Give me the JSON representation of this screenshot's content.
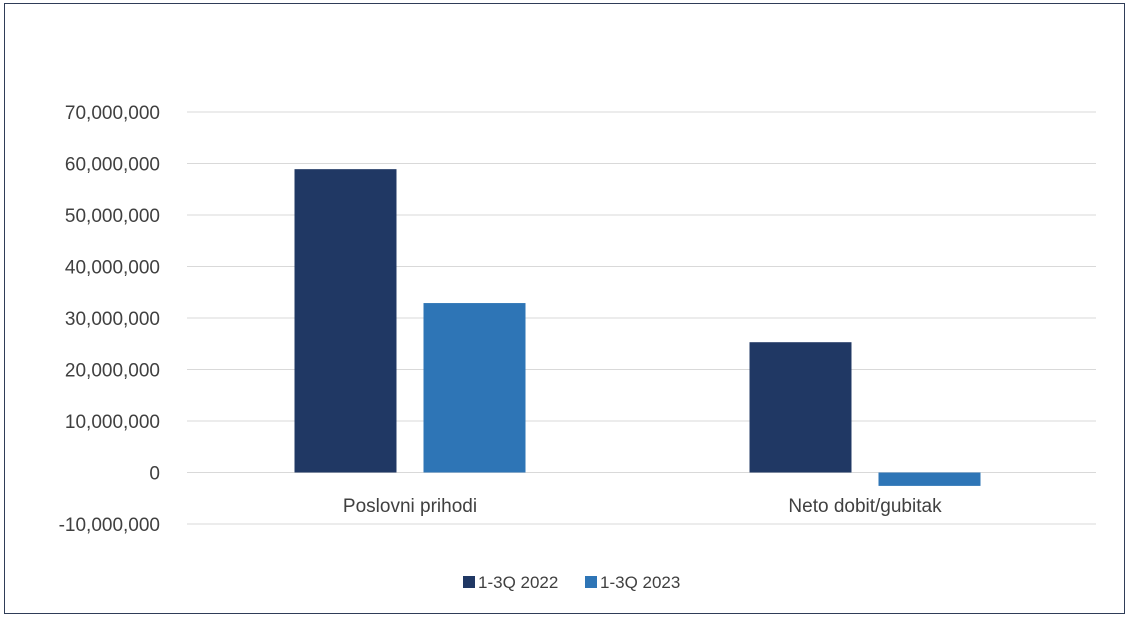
{
  "chart_data": {
    "type": "bar",
    "categories": [
      "Poslovni prihodi",
      "Neto dobit/gubitak"
    ],
    "series": [
      {
        "name": "1-3Q 2022",
        "color": "#203864",
        "values": [
          58900000,
          25300000
        ]
      },
      {
        "name": "1-3Q 2023",
        "color": "#2e75b6",
        "values": [
          32900000,
          -2600000
        ]
      }
    ],
    "ylim": [
      -10000000,
      70000000
    ],
    "yticks": [
      -10000000,
      0,
      10000000,
      20000000,
      30000000,
      40000000,
      50000000,
      60000000,
      70000000
    ],
    "ytick_labels": [
      "-10,000,000",
      "0",
      "10,000,000",
      "20,000,000",
      "30,000,000",
      "40,000,000",
      "50,000,000",
      "60,000,000",
      "70,000,000"
    ],
    "grid": true,
    "legend_position": "bottom"
  },
  "colors": {
    "gridline": "#d9d9d9",
    "text": "#404040",
    "border": "#2f3d58"
  }
}
